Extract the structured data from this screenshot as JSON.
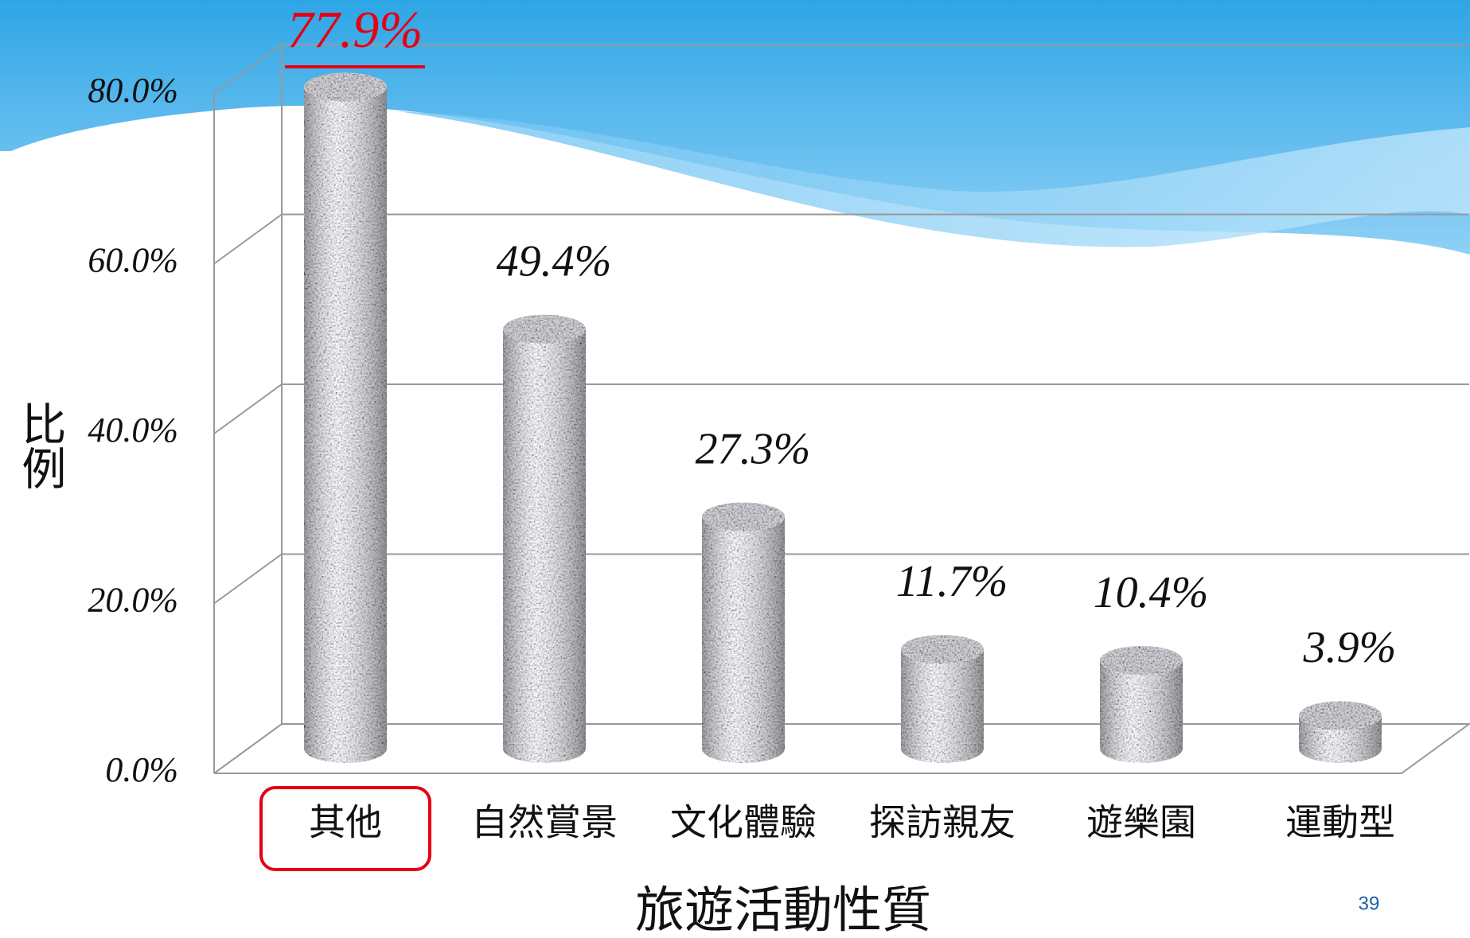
{
  "chart_data": {
    "type": "bar",
    "categories": [
      "其他",
      "自然賞景",
      "文化體驗",
      "探訪親友",
      "遊樂園",
      "運動型"
    ],
    "values": [
      77.9,
      49.4,
      27.3,
      11.7,
      10.4,
      3.9
    ],
    "value_labels": [
      "77.9%",
      "49.4%",
      "27.3%",
      "11.7%",
      "10.4%",
      "3.9%"
    ],
    "ylim": [
      0,
      80
    ],
    "yticks": [
      {
        "value": 0,
        "label": "0.0%"
      },
      {
        "value": 20,
        "label": "20.0%"
      },
      {
        "value": 40,
        "label": "40.0%"
      },
      {
        "value": 60,
        "label": "60.0%"
      },
      {
        "value": 80,
        "label": "80.0%"
      }
    ],
    "xlabel": "旅遊活動性質",
    "ylabel": "比例",
    "grid": true,
    "color": "#9a9ca0",
    "highlight_category": "其他",
    "highlight_color": "#e60012"
  },
  "slide_number": "39"
}
